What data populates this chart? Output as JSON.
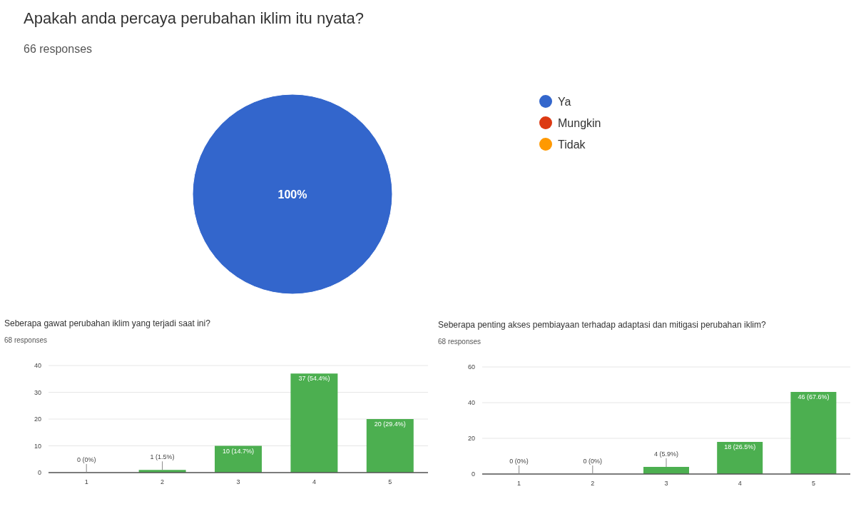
{
  "chart_data": [
    {
      "type": "pie",
      "title": "Apakah anda percaya perubahan iklim itu nyata?",
      "subtitle": "66 responses",
      "categories": [
        "Ya",
        "Mungkin",
        "Tidak"
      ],
      "values": [
        100,
        0,
        0
      ],
      "colors": [
        "#3366cc",
        "#dc3912",
        "#ff9900"
      ],
      "value_labels": [
        "100%",
        null,
        null
      ],
      "legend": "right"
    },
    {
      "type": "bar",
      "title": "Seberapa gawat perubahan iklim yang terjadi saat ini?",
      "subtitle": "68 responses",
      "categories": [
        "1",
        "2",
        "3",
        "4",
        "5"
      ],
      "values": [
        0,
        1,
        10,
        37,
        20
      ],
      "color": "#4caf50",
      "value_labels": [
        "0 (0%)",
        "1 (1.5%)",
        "10 (14.7%)",
        "37 (54.4%)",
        "20 (29.4%)"
      ],
      "ylim": [
        0,
        40
      ],
      "yticks": [
        0,
        10,
        20,
        30,
        40
      ],
      "grid": "y"
    },
    {
      "type": "bar",
      "title": "Seberapa penting akses pembiayaan terhadap adaptasi dan mitigasi perubahan iklim?",
      "subtitle": "68 responses",
      "categories": [
        "1",
        "2",
        "3",
        "4",
        "5"
      ],
      "values": [
        0,
        0,
        4,
        18,
        46
      ],
      "color": "#4caf50",
      "value_labels": [
        "0 (0%)",
        "0 (0%)",
        "4 (5.9%)",
        "18 (26.5%)",
        "46 (67.6%)"
      ],
      "ylim": [
        0,
        60
      ],
      "yticks": [
        0,
        20,
        40,
        60
      ],
      "grid": "y"
    }
  ]
}
